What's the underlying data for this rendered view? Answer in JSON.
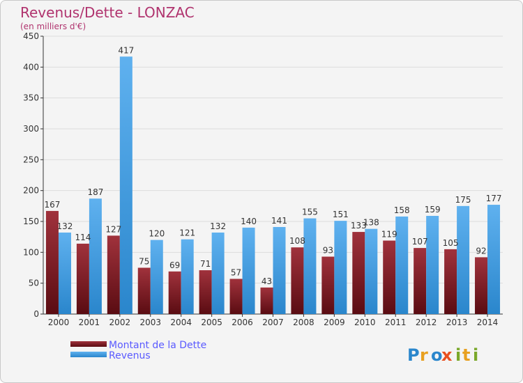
{
  "colors": {
    "dette_dark": "#5a0c12",
    "dette_light": "#a0323c",
    "revenus_dark": "#2a86cc",
    "revenus_light": "#5fb1ef",
    "title": "#b0336e",
    "legend_text": "#5a5aff"
  },
  "chart_data": {
    "type": "bar",
    "title": "Revenus/Dette - LONZAC",
    "subtitle": "(en milliers d'€)",
    "xlabel": "",
    "ylabel": "",
    "ylim": [
      0,
      450
    ],
    "yticks": [
      0,
      50,
      100,
      150,
      200,
      250,
      300,
      350,
      400,
      450
    ],
    "grid": true,
    "legend_position": "bottom-left",
    "categories": [
      "2000",
      "2001",
      "2002",
      "2003",
      "2004",
      "2005",
      "2006",
      "2007",
      "2008",
      "2009",
      "2010",
      "2011",
      "2012",
      "2013",
      "2014"
    ],
    "series": [
      {
        "name": "Montant de la Dette",
        "values": [
          167,
          114,
          127,
          75,
          69,
          71,
          57,
          43,
          108,
          93,
          133,
          119,
          107,
          105,
          92
        ]
      },
      {
        "name": "Revenus",
        "values": [
          132,
          187,
          417,
          120,
          121,
          132,
          140,
          141,
          155,
          151,
          138,
          158,
          159,
          175,
          177
        ]
      }
    ]
  },
  "logo": {
    "text": "Proxiti"
  }
}
